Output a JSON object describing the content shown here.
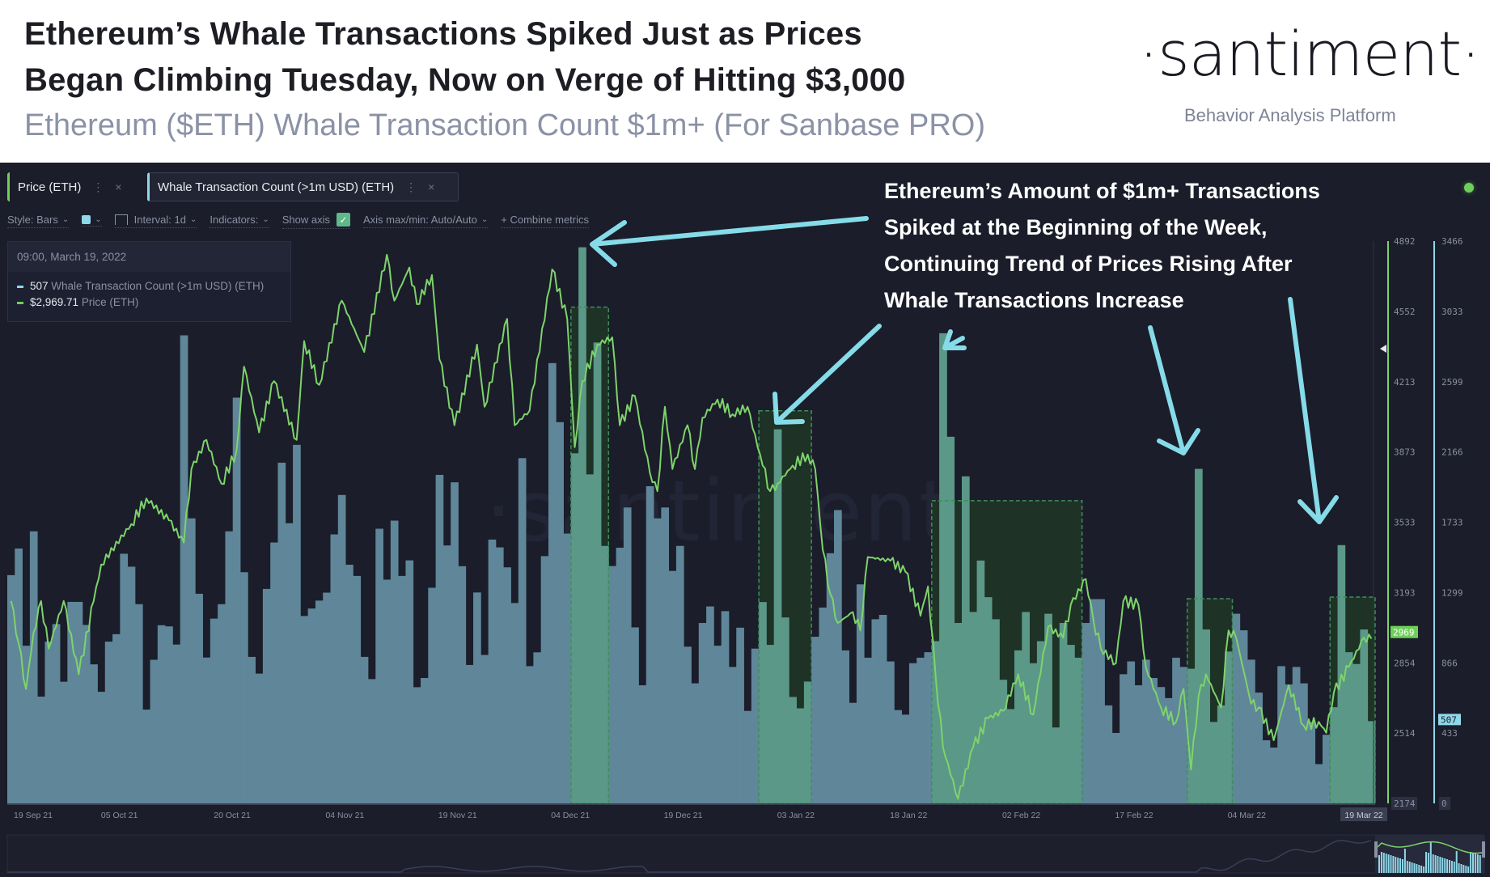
{
  "header": {
    "title_line1": "Ethereum’s Whale Transactions Spiked Just as Prices",
    "title_line2": "Began Climbing Tuesday, Now on Verge of Hitting $3,000",
    "subtitle": "Ethereum ($ETH) Whale Transaction Count $1m+ (For Sanbase PRO)",
    "logo": "·santiment·",
    "tagline": "Behavior Analysis Platform"
  },
  "tabs": [
    {
      "label": "Price (ETH)",
      "color": "#6fcf5a"
    },
    {
      "label": "Whale Transaction Count (>1m USD) (ETH)",
      "color": "#8fd8ea"
    }
  ],
  "tab_menu_icon": "⋮",
  "tab_close_icon": "×",
  "toolbar": {
    "style": "Style: Bars",
    "interval": "Interval: 1d",
    "indicators": "Indicators:",
    "show_axis": "Show axis",
    "show_axis_checked": true,
    "axis_minmax": "Axis max/min: Auto/Auto",
    "combine": "+ Combine metrics",
    "series_color": "#8fd8ea"
  },
  "legend": {
    "datetime": "09:00, March 19, 2022",
    "rows": [
      {
        "value": "507",
        "label": "Whale Transaction Count (>1m USD) (ETH)",
        "color": "#8fd8ea"
      },
      {
        "value": "$2,969.71",
        "label": "Price (ETH)",
        "color": "#6fcf5a"
      }
    ]
  },
  "annotation": {
    "lines": [
      "Ethereum’s Amount of $1m+ Transactions",
      "Spiked at the Beginning of the Week,",
      "Continuing Trend of Prices Rising After",
      "Whale Transactions Increase"
    ],
    "arrow_color": "#86dbe8"
  },
  "watermark": "·santiment·",
  "chart_data": {
    "type": "bar",
    "interval": "1d",
    "x_range": [
      "2021-09-19",
      "2022-03-19"
    ],
    "x_tick_labels": [
      "19 Sep 21",
      "05 Oct 21",
      "20 Oct 21",
      "04 Nov 21",
      "19 Nov 21",
      "04 Dec 21",
      "19 Dec 21",
      "03 Jan 22",
      "18 Jan 22",
      "02 Feb 22",
      "17 Feb 22",
      "04 Mar 22",
      "19 Mar 22"
    ],
    "series": [
      {
        "name": "Whale Transaction Count (>1m USD) (ETH)",
        "type": "bar",
        "color": "#5f8799",
        "axis": {
          "min": 0,
          "max": 3466,
          "ticks": [
            "3466",
            "3033",
            "2599",
            "2166",
            "1733",
            "1299",
            "866",
            "433",
            "0"
          ]
        },
        "current": "507",
        "values": [
          1407,
          1571,
          972,
          1677,
          658,
          997,
          1105,
          750,
          1242,
          1242,
          1100,
          857,
          688,
          997,
          1043,
          1539,
          1459,
          1228,
          578,
          885,
          1098,
          1091,
          979,
          2885,
          1757,
          1292,
          899,
          1139,
          1228,
          1677,
          2501,
          1425,
          903,
          800,
          1322,
          1608,
          2100,
          1727,
          2210,
          1155,
          1201,
          1250,
          1299,
          1658,
          1901,
          1471,
          1402,
          903,
          766,
          1693,
          1379,
          1743,
          1402,
          1498,
          716,
          773,
          1329,
          2025,
          1590,
          1979,
          1462,
          853,
          1300,
          915,
          1626,
          1578,
          1455,
          1235,
          2128,
          846,
          931,
          1524,
          2714,
          2350,
          1663,
          2158,
          3428,
          2028,
          2841,
          1587,
          1463,
          1576,
          1824,
          1085,
          728,
          1955,
          1757,
          1824,
          1433,
          1587,
          966,
          740,
          1112,
          1214,
          972,
          1185,
          841,
          1083,
          570,
          954,
          1241,
          977,
          2306,
          1146,
          656,
          586,
          751,
          1027,
          1207,
          1542,
          1808,
          943,
          620,
          1350,
          898,
          1135,
          1162,
          875,
          575,
          547,
          864,
          898,
          932,
          1000,
          2898,
          2260,
          1112,
          2016,
          1180,
          1497,
          1271,
          1135,
          762,
          581,
          943,
          1180,
          864,
          1000,
          1169,
          468,
          1112,
          977,
          898,
          1112,
          1259,
          1259,
          604,
          434,
          796,
          875,
          728,
          886,
          773,
          717,
          649,
          898,
          841,
          830,
          2062,
          1072,
          502,
          604,
          936,
          1169,
          1067,
          886,
          683,
          389,
          344,
          846,
          733,
          841,
          740,
          502,
          242,
          423,
          593,
          1592,
          932,
          859,
          1072,
          507
        ]
      },
      {
        "name": "Price (ETH)",
        "type": "line",
        "color": "#7ed36b",
        "axis": {
          "min": 2174,
          "max": 4892,
          "ticks": [
            "4892",
            "4552",
            "4213",
            "3873",
            "3533",
            "3193",
            "2854",
            "2514",
            "2174"
          ]
        },
        "current": "2969",
        "points": [
          [
            "2021-09-19",
            3152
          ],
          [
            "2021-09-20",
            2950
          ],
          [
            "2021-09-21",
            2727
          ],
          [
            "2021-09-22",
            3000
          ],
          [
            "2021-09-23",
            3152
          ],
          [
            "2021-09-24",
            2922
          ],
          [
            "2021-09-26",
            3152
          ],
          [
            "2021-09-28",
            2798
          ],
          [
            "2021-09-30",
            3152
          ],
          [
            "2021-10-01",
            3329
          ],
          [
            "2021-10-05",
            3524
          ],
          [
            "2021-10-07",
            3648
          ],
          [
            "2021-10-10",
            3542
          ],
          [
            "2021-10-12",
            3435
          ],
          [
            "2021-10-13",
            3790
          ],
          [
            "2021-10-15",
            3931
          ],
          [
            "2021-10-17",
            3719
          ],
          [
            "2021-10-19",
            3878
          ],
          [
            "2021-10-20",
            4285
          ],
          [
            "2021-10-22",
            3967
          ],
          [
            "2021-10-24",
            4215
          ],
          [
            "2021-10-27",
            3931
          ],
          [
            "2021-10-28",
            4409
          ],
          [
            "2021-10-30",
            4197
          ],
          [
            "2021-11-02",
            4604
          ],
          [
            "2021-11-05",
            4356
          ],
          [
            "2021-11-08",
            4826
          ],
          [
            "2021-11-09",
            4604
          ],
          [
            "2021-11-11",
            4764
          ],
          [
            "2021-11-12",
            4587
          ],
          [
            "2021-11-14",
            4728
          ],
          [
            "2021-11-15",
            4321
          ],
          [
            "2021-11-17",
            4002
          ],
          [
            "2021-11-20",
            4392
          ],
          [
            "2021-11-21",
            4091
          ],
          [
            "2021-11-24",
            4516
          ],
          [
            "2021-11-25",
            4002
          ],
          [
            "2021-11-27",
            4073
          ],
          [
            "2021-11-30",
            4755
          ],
          [
            "2021-12-02",
            4516
          ],
          [
            "2021-12-03",
            3896
          ],
          [
            "2021-12-04",
            4215
          ],
          [
            "2021-12-06",
            4392
          ],
          [
            "2021-12-08",
            4427
          ],
          [
            "2021-12-09",
            4002
          ],
          [
            "2021-12-11",
            4144
          ],
          [
            "2021-12-13",
            3772
          ],
          [
            "2021-12-14",
            3683
          ],
          [
            "2021-12-15",
            4091
          ],
          [
            "2021-12-16",
            3790
          ],
          [
            "2021-12-18",
            4002
          ],
          [
            "2021-12-19",
            3790
          ],
          [
            "2021-12-20",
            4038
          ],
          [
            "2021-12-22",
            4126
          ],
          [
            "2021-12-24",
            4055
          ],
          [
            "2021-12-26",
            4091
          ],
          [
            "2021-12-28",
            3807
          ],
          [
            "2021-12-29",
            3683
          ],
          [
            "2021-12-30",
            3719
          ],
          [
            "2022-01-01",
            3807
          ],
          [
            "2022-01-03",
            3860
          ],
          [
            "2022-01-04",
            3790
          ],
          [
            "2022-01-05",
            3400
          ],
          [
            "2022-01-06",
            3187
          ],
          [
            "2022-01-07",
            3046
          ],
          [
            "2022-01-09",
            3099
          ],
          [
            "2022-01-10",
            3010
          ],
          [
            "2022-01-11",
            3365
          ],
          [
            "2022-01-14",
            3347
          ],
          [
            "2022-01-16",
            3294
          ],
          [
            "2022-01-18",
            3081
          ],
          [
            "2022-01-19",
            3223
          ],
          [
            "2022-01-20",
            2798
          ],
          [
            "2022-01-21",
            2444
          ],
          [
            "2022-01-23",
            2196
          ],
          [
            "2022-01-25",
            2444
          ],
          [
            "2022-01-27",
            2585
          ],
          [
            "2022-01-29",
            2621
          ],
          [
            "2022-01-31",
            2798
          ],
          [
            "2022-02-02",
            2603
          ],
          [
            "2022-02-04",
            3028
          ],
          [
            "2022-02-06",
            2975
          ],
          [
            "2022-02-07",
            3134
          ],
          [
            "2022-02-09",
            3258
          ],
          [
            "2022-02-10",
            3063
          ],
          [
            "2022-02-11",
            2922
          ],
          [
            "2022-02-13",
            2851
          ],
          [
            "2022-02-14",
            3152
          ],
          [
            "2022-02-16",
            3134
          ],
          [
            "2022-02-17",
            2833
          ],
          [
            "2022-02-19",
            2638
          ],
          [
            "2022-02-21",
            2568
          ],
          [
            "2022-02-22",
            2727
          ],
          [
            "2022-02-23",
            2337
          ],
          [
            "2022-02-24",
            2692
          ],
          [
            "2022-02-25",
            2798
          ],
          [
            "2022-02-27",
            2638
          ],
          [
            "2022-02-28",
            3010
          ],
          [
            "2022-03-01",
            2975
          ],
          [
            "2022-03-03",
            2656
          ],
          [
            "2022-03-04",
            2638
          ],
          [
            "2022-03-06",
            2479
          ],
          [
            "2022-03-08",
            2745
          ],
          [
            "2022-03-10",
            2550
          ],
          [
            "2022-03-12",
            2568
          ],
          [
            "2022-03-13",
            2515
          ],
          [
            "2022-03-14",
            2709
          ],
          [
            "2022-03-16",
            2833
          ],
          [
            "2022-03-18",
            2975
          ],
          [
            "2022-03-19",
            2969.71
          ]
        ]
      }
    ],
    "grid": false,
    "legend": "top-left"
  }
}
